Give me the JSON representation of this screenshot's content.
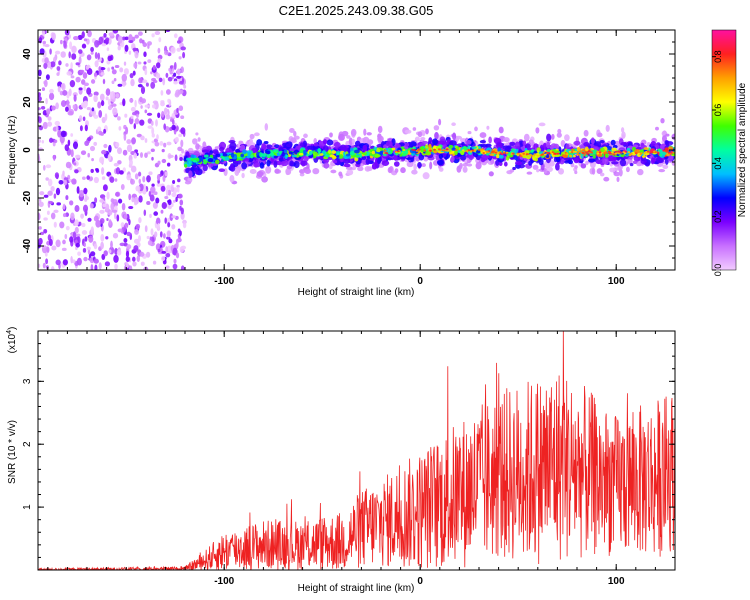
{
  "title": "C2E1.2025.243.09.38.G05",
  "colors": {
    "snr_line": "#ee2222",
    "axis": "#000000",
    "background": "#ffffff"
  },
  "chart_data": [
    {
      "type": "heatmap",
      "title": "C2E1.2025.243.09.38.G05",
      "xlabel": "Height of straight line (km)",
      "ylabel": "Frequency (Hz)",
      "xlim": [
        -195,
        130
      ],
      "ylim": [
        -50,
        50
      ],
      "x_ticks": [
        {
          "value": -100,
          "label": "-100"
        },
        {
          "value": 0,
          "label": "0"
        },
        {
          "value": 100,
          "label": "100"
        }
      ],
      "y_ticks": [
        {
          "value": -40,
          "label": "-40"
        },
        {
          "value": -20,
          "label": "-20"
        },
        {
          "value": 0,
          "label": "0"
        },
        {
          "value": 20,
          "label": "20"
        },
        {
          "value": 40,
          "label": "40"
        }
      ],
      "colorbar": {
        "label": "Normalized spectral amplitude",
        "range": [
          0,
          0.9
        ],
        "ticks": [
          {
            "value": 0.0,
            "label": "0.0"
          },
          {
            "value": 0.2,
            "label": "0.2"
          },
          {
            "value": 0.4,
            "label": "0.4"
          },
          {
            "value": 0.6,
            "label": "0.6"
          },
          {
            "value": 0.8,
            "label": "0.8"
          }
        ],
        "colormap": [
          "#f2ccff",
          "#c870ff",
          "#7a00ff",
          "#0000ff",
          "#00bfff",
          "#00ffa0",
          "#40ff00",
          "#ffff00",
          "#ffa000",
          "#ff2020",
          "#ff10a0"
        ]
      },
      "signal_band": {
        "x_start": -120,
        "x_end": 130,
        "center_freq_profile": [
          {
            "x": -120,
            "freq": -5
          },
          {
            "x": -100,
            "freq": -3
          },
          {
            "x": -80,
            "freq": -2
          },
          {
            "x": -60,
            "freq": -1
          },
          {
            "x": -40,
            "freq": -2
          },
          {
            "x": -20,
            "freq": -1
          },
          {
            "x": 0,
            "freq": 0
          },
          {
            "x": 20,
            "freq": 0
          },
          {
            "x": 40,
            "freq": -1
          },
          {
            "x": 60,
            "freq": -2
          },
          {
            "x": 80,
            "freq": -1
          },
          {
            "x": 100,
            "freq": -1
          },
          {
            "x": 130,
            "freq": -1
          }
        ],
        "peak_amplitude": 0.85
      },
      "noise_region": {
        "x_start": -195,
        "x_end": -120,
        "amplitude_range": [
          0.0,
          0.2
        ]
      }
    },
    {
      "type": "line",
      "xlabel": "Height of straight line (km)",
      "ylabel": "SNR (10 * v/v)",
      "y_scale_label": "(x10",
      "y_scale_exponent": "4",
      "y_scale_close": ")",
      "xlim": [
        -195,
        130
      ],
      "ylim": [
        0,
        3.8
      ],
      "x_ticks": [
        {
          "value": -100,
          "label": "-100"
        },
        {
          "value": 0,
          "label": "0"
        },
        {
          "value": 100,
          "label": "100"
        }
      ],
      "y_ticks": [
        {
          "value": 1,
          "label": "1"
        },
        {
          "value": 2,
          "label": "2"
        },
        {
          "value": 3,
          "label": "3"
        }
      ],
      "envelope": [
        {
          "x": -195,
          "mean": 0.01,
          "amp": 0.01
        },
        {
          "x": -120,
          "mean": 0.02,
          "amp": 0.02
        },
        {
          "x": -110,
          "mean": 0.15,
          "amp": 0.1
        },
        {
          "x": -100,
          "mean": 0.3,
          "amp": 0.2
        },
        {
          "x": -80,
          "mean": 0.4,
          "amp": 0.25
        },
        {
          "x": -60,
          "mean": 0.4,
          "amp": 0.25
        },
        {
          "x": -40,
          "mean": 0.45,
          "amp": 0.3
        },
        {
          "x": -30,
          "mean": 0.65,
          "amp": 0.4
        },
        {
          "x": -20,
          "mean": 0.75,
          "amp": 0.45
        },
        {
          "x": 0,
          "mean": 0.95,
          "amp": 0.6
        },
        {
          "x": 20,
          "mean": 1.2,
          "amp": 0.75
        },
        {
          "x": 40,
          "mean": 1.5,
          "amp": 0.85
        },
        {
          "x": 60,
          "mean": 1.6,
          "amp": 0.95
        },
        {
          "x": 70,
          "mean": 1.7,
          "amp": 1.0
        },
        {
          "x": 80,
          "mean": 1.6,
          "amp": 0.9
        },
        {
          "x": 100,
          "mean": 1.35,
          "amp": 0.7
        },
        {
          "x": 120,
          "mean": 1.45,
          "amp": 0.8
        },
        {
          "x": 130,
          "mean": 1.6,
          "amp": 0.8
        }
      ],
      "peak": {
        "x": 73,
        "y": 3.85
      }
    }
  ]
}
